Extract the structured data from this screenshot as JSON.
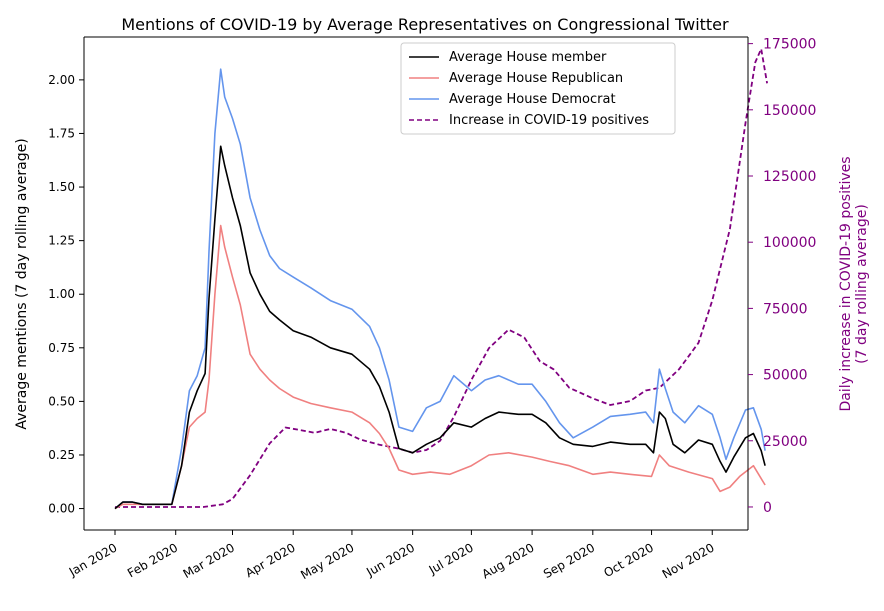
{
  "chart_data": {
    "type": "line",
    "title": "Mentions of COVID-19 by Average Representatives on Congressional Twitter",
    "ylabel_left": "Average mentions (7 day rolling average)",
    "ylabel_right_line1": "Daily increase in COVID-19 positives",
    "ylabel_right_line2": "(7 day rolling average)",
    "right_axis_color": "#800080",
    "left_ylim": [
      -0.1,
      2.2
    ],
    "right_ylim": [
      -8700,
      177500
    ],
    "left_ticks": [
      0.0,
      0.25,
      0.5,
      0.75,
      1.0,
      1.25,
      1.5,
      1.75,
      2.0
    ],
    "left_tick_labels": [
      "0.00",
      "0.25",
      "0.50",
      "0.75",
      "1.00",
      "1.25",
      "1.50",
      "1.75",
      "2.00"
    ],
    "right_ticks": [
      0,
      25000,
      50000,
      75000,
      100000,
      125000,
      150000,
      175000
    ],
    "right_tick_labels": [
      "0",
      "25000",
      "50000",
      "75000",
      "100000",
      "125000",
      "150000",
      "175000"
    ],
    "x_domain": [
      "2020-01-01",
      "2020-11-30"
    ],
    "x_ticks": [
      "2020-01-01",
      "2020-02-01",
      "2020-03-01",
      "2020-04-01",
      "2020-05-01",
      "2020-06-01",
      "2020-07-01",
      "2020-08-01",
      "2020-09-01",
      "2020-10-01",
      "2020-11-01"
    ],
    "x_tick_labels": [
      "Jan 2020",
      "Feb 2020",
      "Mar 2020",
      "Apr 2020",
      "May 2020",
      "Jun 2020",
      "Jul 2020",
      "Aug 2020",
      "Sep 2020",
      "Oct 2020",
      "Nov 2020"
    ],
    "legend_position": "top-right",
    "grid": false,
    "series": [
      {
        "name": "Average House member",
        "axis": "left",
        "color": "#000000",
        "dashed": false,
        "points": [
          [
            "2020-01-01",
            0.0
          ],
          [
            "2020-01-05",
            0.03
          ],
          [
            "2020-01-10",
            0.03
          ],
          [
            "2020-01-15",
            0.02
          ],
          [
            "2020-01-20",
            0.02
          ],
          [
            "2020-01-25",
            0.02
          ],
          [
            "2020-01-30",
            0.02
          ],
          [
            "2020-02-04",
            0.2
          ],
          [
            "2020-02-08",
            0.45
          ],
          [
            "2020-02-12",
            0.55
          ],
          [
            "2020-02-16",
            0.63
          ],
          [
            "2020-02-18",
            0.98
          ],
          [
            "2020-02-21",
            1.35
          ],
          [
            "2020-02-24",
            1.69
          ],
          [
            "2020-02-26",
            1.6
          ],
          [
            "2020-03-01",
            1.45
          ],
          [
            "2020-03-05",
            1.32
          ],
          [
            "2020-03-10",
            1.1
          ],
          [
            "2020-03-15",
            1.0
          ],
          [
            "2020-03-20",
            0.92
          ],
          [
            "2020-03-25",
            0.88
          ],
          [
            "2020-04-01",
            0.83
          ],
          [
            "2020-04-10",
            0.8
          ],
          [
            "2020-04-20",
            0.75
          ],
          [
            "2020-05-01",
            0.72
          ],
          [
            "2020-05-10",
            0.65
          ],
          [
            "2020-05-15",
            0.57
          ],
          [
            "2020-05-20",
            0.45
          ],
          [
            "2020-05-25",
            0.28
          ],
          [
            "2020-06-01",
            0.26
          ],
          [
            "2020-06-08",
            0.3
          ],
          [
            "2020-06-15",
            0.33
          ],
          [
            "2020-06-22",
            0.4
          ],
          [
            "2020-07-01",
            0.38
          ],
          [
            "2020-07-08",
            0.42
          ],
          [
            "2020-07-15",
            0.45
          ],
          [
            "2020-07-25",
            0.44
          ],
          [
            "2020-08-01",
            0.44
          ],
          [
            "2020-08-08",
            0.4
          ],
          [
            "2020-08-15",
            0.33
          ],
          [
            "2020-08-22",
            0.3
          ],
          [
            "2020-09-01",
            0.29
          ],
          [
            "2020-09-10",
            0.31
          ],
          [
            "2020-09-20",
            0.3
          ],
          [
            "2020-09-28",
            0.3
          ],
          [
            "2020-10-02",
            0.26
          ],
          [
            "2020-10-05",
            0.45
          ],
          [
            "2020-10-08",
            0.42
          ],
          [
            "2020-10-12",
            0.3
          ],
          [
            "2020-10-18",
            0.26
          ],
          [
            "2020-10-25",
            0.32
          ],
          [
            "2020-11-01",
            0.3
          ],
          [
            "2020-11-05",
            0.22
          ],
          [
            "2020-11-08",
            0.17
          ],
          [
            "2020-11-12",
            0.24
          ],
          [
            "2020-11-18",
            0.33
          ],
          [
            "2020-11-22",
            0.35
          ],
          [
            "2020-11-26",
            0.27
          ],
          [
            "2020-11-28",
            0.2
          ]
        ]
      },
      {
        "name": "Average House Republican",
        "axis": "left",
        "color": "#f08080",
        "dashed": false,
        "points": [
          [
            "2020-01-01",
            0.0
          ],
          [
            "2020-01-05",
            0.02
          ],
          [
            "2020-01-10",
            0.02
          ],
          [
            "2020-01-15",
            0.02
          ],
          [
            "2020-01-20",
            0.02
          ],
          [
            "2020-01-25",
            0.02
          ],
          [
            "2020-01-30",
            0.02
          ],
          [
            "2020-02-04",
            0.2
          ],
          [
            "2020-02-08",
            0.38
          ],
          [
            "2020-02-12",
            0.42
          ],
          [
            "2020-02-16",
            0.45
          ],
          [
            "2020-02-18",
            0.6
          ],
          [
            "2020-02-21",
            1.0
          ],
          [
            "2020-02-24",
            1.32
          ],
          [
            "2020-02-26",
            1.22
          ],
          [
            "2020-03-01",
            1.08
          ],
          [
            "2020-03-05",
            0.95
          ],
          [
            "2020-03-10",
            0.72
          ],
          [
            "2020-03-15",
            0.65
          ],
          [
            "2020-03-20",
            0.6
          ],
          [
            "2020-03-25",
            0.56
          ],
          [
            "2020-04-01",
            0.52
          ],
          [
            "2020-04-10",
            0.49
          ],
          [
            "2020-04-20",
            0.47
          ],
          [
            "2020-05-01",
            0.45
          ],
          [
            "2020-05-10",
            0.4
          ],
          [
            "2020-05-15",
            0.35
          ],
          [
            "2020-05-20",
            0.28
          ],
          [
            "2020-05-25",
            0.18
          ],
          [
            "2020-06-01",
            0.16
          ],
          [
            "2020-06-10",
            0.17
          ],
          [
            "2020-06-20",
            0.16
          ],
          [
            "2020-07-01",
            0.2
          ],
          [
            "2020-07-10",
            0.25
          ],
          [
            "2020-07-20",
            0.26
          ],
          [
            "2020-08-01",
            0.24
          ],
          [
            "2020-08-10",
            0.22
          ],
          [
            "2020-08-20",
            0.2
          ],
          [
            "2020-09-01",
            0.16
          ],
          [
            "2020-09-10",
            0.17
          ],
          [
            "2020-09-20",
            0.16
          ],
          [
            "2020-10-01",
            0.15
          ],
          [
            "2020-10-05",
            0.25
          ],
          [
            "2020-10-10",
            0.2
          ],
          [
            "2020-10-20",
            0.17
          ],
          [
            "2020-11-01",
            0.14
          ],
          [
            "2020-11-05",
            0.08
          ],
          [
            "2020-11-10",
            0.1
          ],
          [
            "2020-11-15",
            0.15
          ],
          [
            "2020-11-22",
            0.2
          ],
          [
            "2020-11-28",
            0.11
          ]
        ]
      },
      {
        "name": "Average House Democrat",
        "axis": "left",
        "color": "#6495ed",
        "dashed": false,
        "points": [
          [
            "2020-01-01",
            0.0
          ],
          [
            "2020-01-05",
            0.03
          ],
          [
            "2020-01-10",
            0.03
          ],
          [
            "2020-01-15",
            0.02
          ],
          [
            "2020-01-20",
            0.02
          ],
          [
            "2020-01-25",
            0.02
          ],
          [
            "2020-01-30",
            0.02
          ],
          [
            "2020-02-04",
            0.28
          ],
          [
            "2020-02-08",
            0.55
          ],
          [
            "2020-02-12",
            0.62
          ],
          [
            "2020-02-16",
            0.75
          ],
          [
            "2020-02-18",
            1.2
          ],
          [
            "2020-02-21",
            1.75
          ],
          [
            "2020-02-24",
            2.05
          ],
          [
            "2020-02-26",
            1.92
          ],
          [
            "2020-03-01",
            1.82
          ],
          [
            "2020-03-05",
            1.7
          ],
          [
            "2020-03-10",
            1.45
          ],
          [
            "2020-03-15",
            1.3
          ],
          [
            "2020-03-20",
            1.18
          ],
          [
            "2020-03-25",
            1.12
          ],
          [
            "2020-04-01",
            1.08
          ],
          [
            "2020-04-10",
            1.03
          ],
          [
            "2020-04-20",
            0.97
          ],
          [
            "2020-05-01",
            0.93
          ],
          [
            "2020-05-10",
            0.85
          ],
          [
            "2020-05-15",
            0.75
          ],
          [
            "2020-05-20",
            0.6
          ],
          [
            "2020-05-25",
            0.38
          ],
          [
            "2020-06-01",
            0.36
          ],
          [
            "2020-06-08",
            0.47
          ],
          [
            "2020-06-15",
            0.5
          ],
          [
            "2020-06-22",
            0.62
          ],
          [
            "2020-07-01",
            0.55
          ],
          [
            "2020-07-08",
            0.6
          ],
          [
            "2020-07-15",
            0.62
          ],
          [
            "2020-07-25",
            0.58
          ],
          [
            "2020-08-01",
            0.58
          ],
          [
            "2020-08-08",
            0.5
          ],
          [
            "2020-08-15",
            0.4
          ],
          [
            "2020-08-22",
            0.33
          ],
          [
            "2020-09-01",
            0.38
          ],
          [
            "2020-09-10",
            0.43
          ],
          [
            "2020-09-20",
            0.44
          ],
          [
            "2020-09-28",
            0.45
          ],
          [
            "2020-10-02",
            0.4
          ],
          [
            "2020-10-05",
            0.65
          ],
          [
            "2020-10-08",
            0.56
          ],
          [
            "2020-10-12",
            0.45
          ],
          [
            "2020-10-18",
            0.4
          ],
          [
            "2020-10-25",
            0.48
          ],
          [
            "2020-11-01",
            0.44
          ],
          [
            "2020-11-05",
            0.33
          ],
          [
            "2020-11-08",
            0.23
          ],
          [
            "2020-11-12",
            0.33
          ],
          [
            "2020-11-18",
            0.46
          ],
          [
            "2020-11-22",
            0.47
          ],
          [
            "2020-11-26",
            0.37
          ],
          [
            "2020-11-28",
            0.27
          ]
        ]
      },
      {
        "name": "Increase in COVID-19 positives",
        "axis": "right",
        "color": "#800080",
        "dashed": true,
        "points": [
          [
            "2020-01-01",
            0
          ],
          [
            "2020-02-01",
            0
          ],
          [
            "2020-02-15",
            0
          ],
          [
            "2020-02-25",
            1000
          ],
          [
            "2020-03-01",
            3000
          ],
          [
            "2020-03-10",
            12000
          ],
          [
            "2020-03-20",
            24000
          ],
          [
            "2020-03-28",
            30000
          ],
          [
            "2020-04-05",
            29000
          ],
          [
            "2020-04-12",
            28000
          ],
          [
            "2020-04-20",
            29500
          ],
          [
            "2020-04-28",
            28000
          ],
          [
            "2020-05-05",
            25500
          ],
          [
            "2020-05-15",
            23500
          ],
          [
            "2020-05-25",
            22000
          ],
          [
            "2020-06-01",
            20500
          ],
          [
            "2020-06-08",
            21500
          ],
          [
            "2020-06-15",
            25000
          ],
          [
            "2020-06-22",
            34000
          ],
          [
            "2020-07-01",
            48000
          ],
          [
            "2020-07-10",
            60000
          ],
          [
            "2020-07-20",
            67000
          ],
          [
            "2020-07-28",
            64000
          ],
          [
            "2020-08-05",
            55000
          ],
          [
            "2020-08-12",
            52000
          ],
          [
            "2020-08-20",
            45000
          ],
          [
            "2020-09-01",
            41000
          ],
          [
            "2020-09-10",
            38500
          ],
          [
            "2020-09-20",
            40000
          ],
          [
            "2020-09-28",
            44000
          ],
          [
            "2020-10-05",
            45000
          ],
          [
            "2020-10-15",
            52000
          ],
          [
            "2020-10-25",
            62000
          ],
          [
            "2020-11-01",
            78000
          ],
          [
            "2020-11-10",
            105000
          ],
          [
            "2020-11-18",
            145000
          ],
          [
            "2020-11-23",
            168000
          ],
          [
            "2020-11-26",
            173000
          ],
          [
            "2020-11-29",
            160000
          ]
        ]
      }
    ]
  }
}
